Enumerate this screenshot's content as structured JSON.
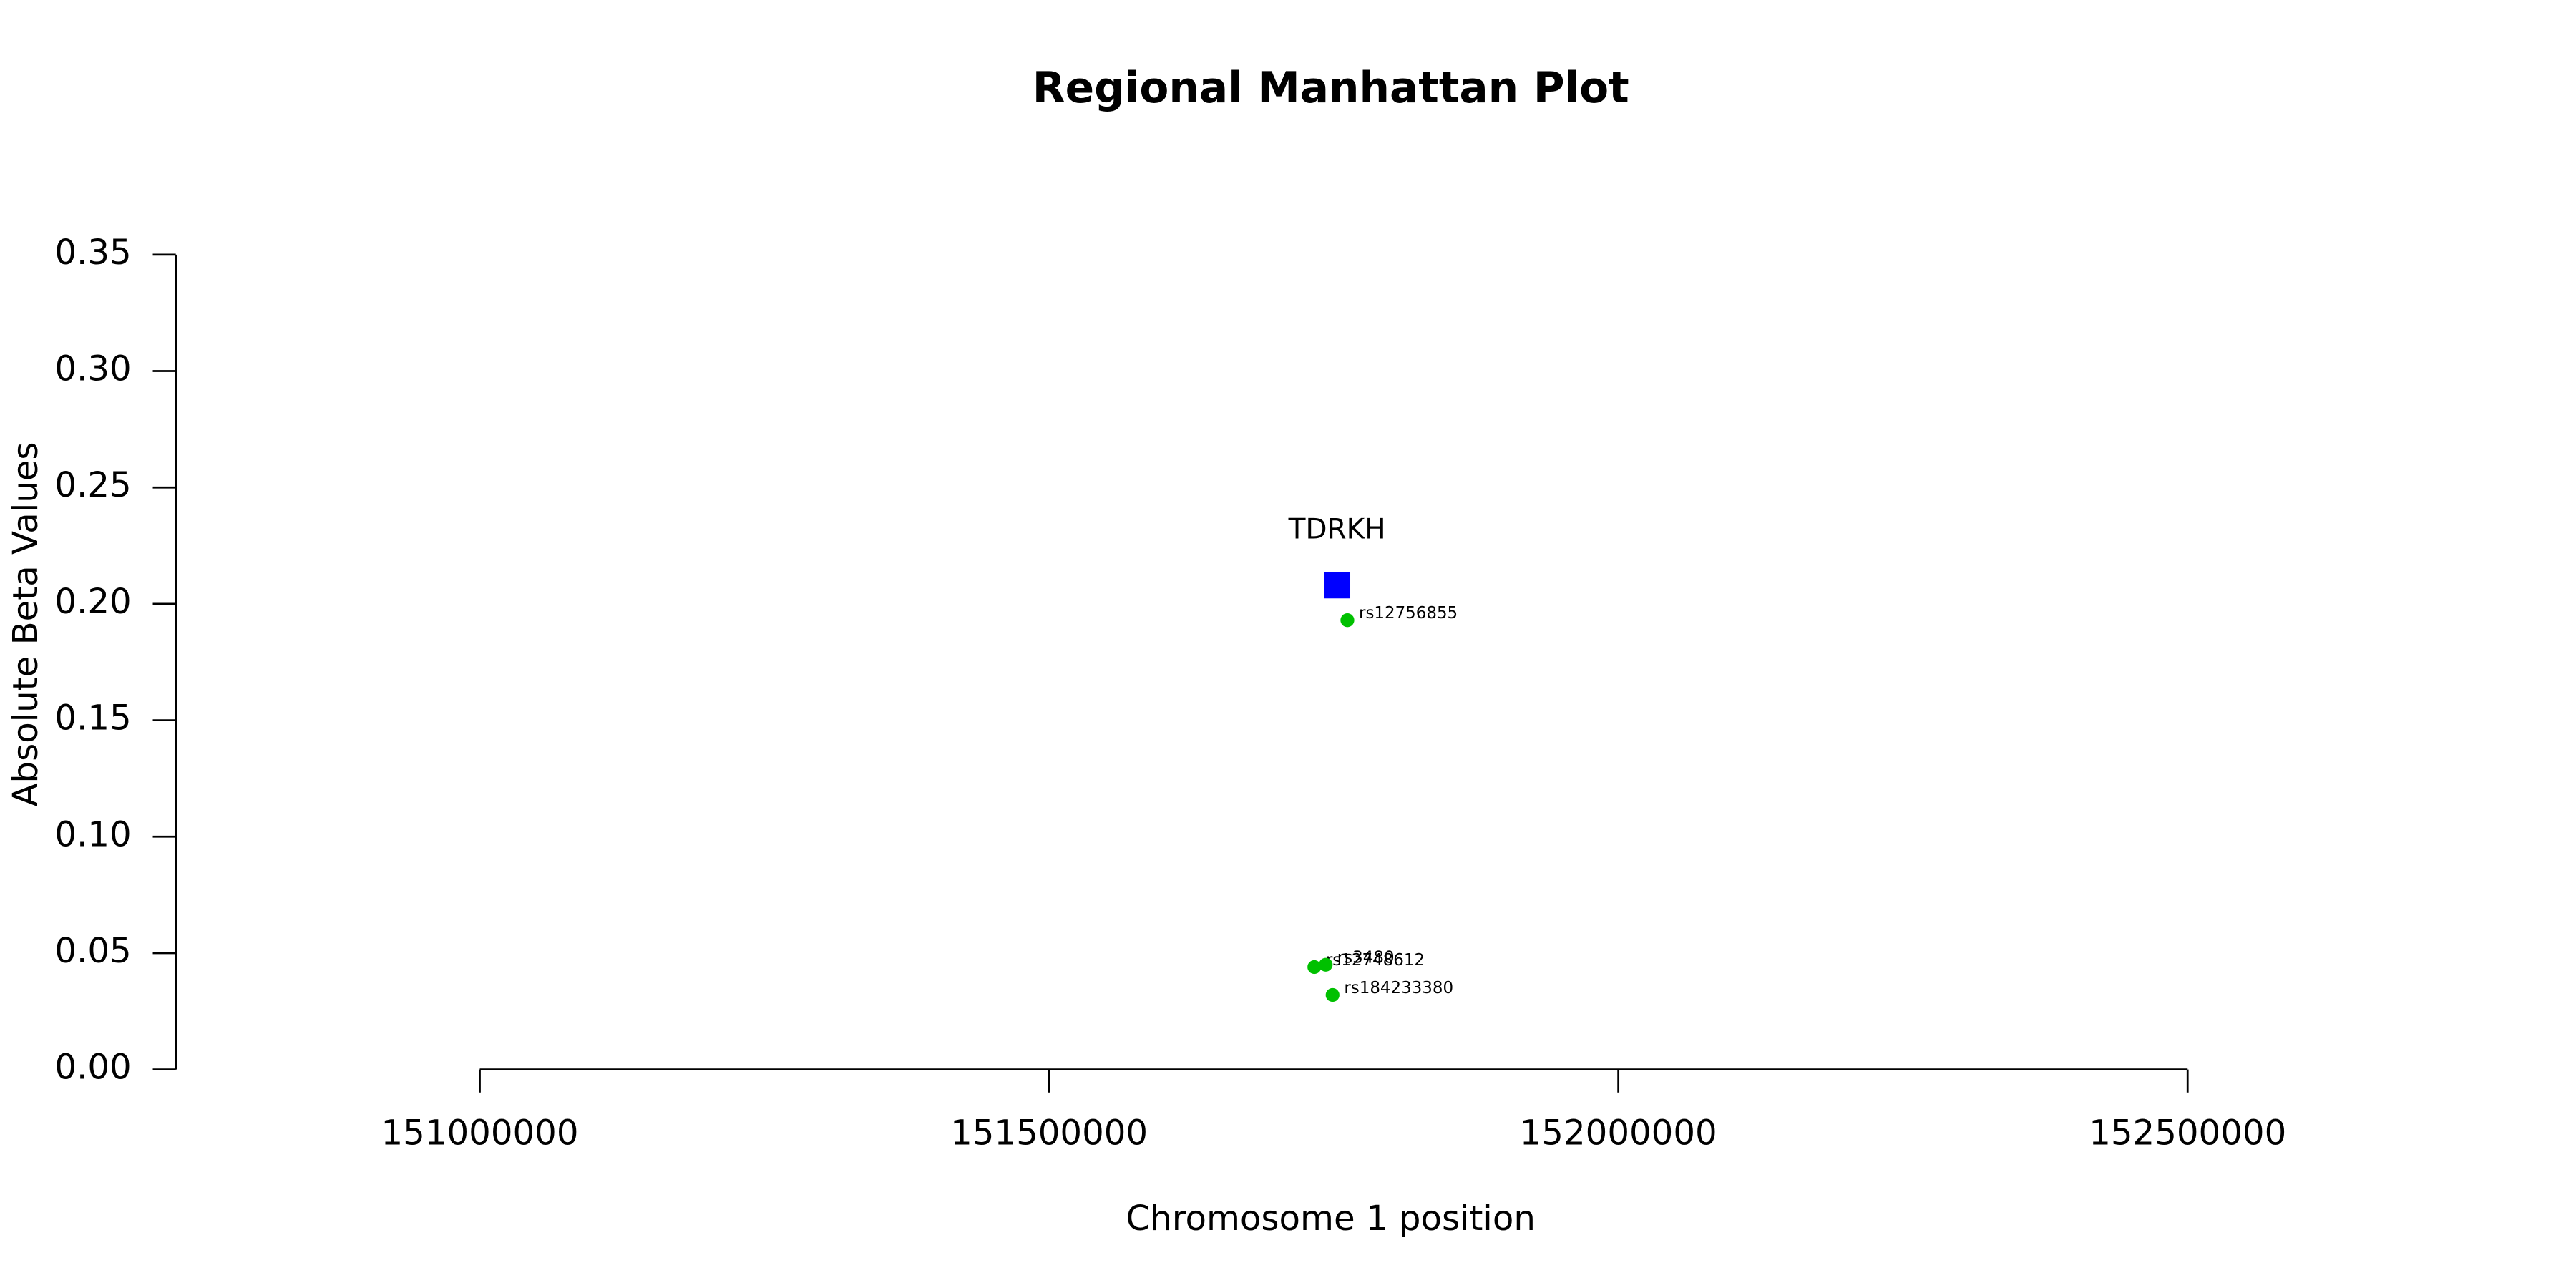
{
  "chart_data": {
    "type": "scatter",
    "title": "Regional Manhattan Plot",
    "x_label": "Chromosome 1 position",
    "y_label": "Absolute Beta Values",
    "xlim": [
      150733000,
      152743000
    ],
    "ylim": [
      0,
      0.35
    ],
    "xticks": [
      151000000,
      151500000,
      152000000,
      152500000
    ],
    "yticks": [
      {
        "value": 0,
        "label": "0.00"
      },
      {
        "value": 0.05,
        "label": "0.05"
      },
      {
        "value": 0.1,
        "label": "0.10"
      },
      {
        "value": 0.15,
        "label": "0.15"
      },
      {
        "value": 0.2,
        "label": "0.20"
      },
      {
        "value": 0.25,
        "label": "0.25"
      },
      {
        "value": 0.3,
        "label": "0.30"
      },
      {
        "value": 0.35,
        "label": "0.35"
      }
    ],
    "gene": {
      "label": "TDRKH",
      "x": 151753000,
      "y": 0.208,
      "color": "#0000ff"
    },
    "snps": {
      "color": "#00c000",
      "x": [
        151762000,
        151733000,
        151743000,
        151749000
      ],
      "y": [
        0.193,
        0.044,
        0.045,
        0.032
      ],
      "labels": [
        "rs12756855",
        "rs12748612",
        "rs3480",
        "rs184233380"
      ]
    }
  }
}
